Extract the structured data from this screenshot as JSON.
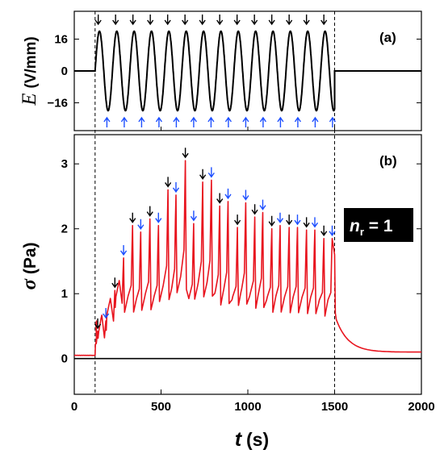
{
  "chart_data": [
    {
      "panel": "(a)",
      "type": "line",
      "ylabel": "E (V/mm)",
      "ylabel_symbol": "E",
      "ylabel_unit": "(V/mm)",
      "y_ticks": [
        16,
        0,
        -16
      ],
      "y_tick_labels": [
        "16",
        "0",
        "−16"
      ],
      "ylim": [
        -30,
        30
      ],
      "xlim": [
        0,
        2000
      ],
      "series": [
        {
          "color": "#000000",
          "description_values": {
            "off_before": [
              0,
              120
            ],
            "ac_on": [
              120,
              1500
            ],
            "amplitude": 20,
            "period": 100,
            "off_after": [
              1500,
              2000
            ]
          }
        }
      ],
      "peak_marker_times_black": [
        138,
        238,
        338,
        438,
        538,
        638,
        738,
        838,
        938,
        1038,
        1138,
        1238,
        1338,
        1438
      ],
      "trough_marker_times_blue": [
        188,
        288,
        388,
        488,
        588,
        688,
        788,
        888,
        988,
        1088,
        1188,
        1288,
        1388,
        1488
      ],
      "colors": {
        "black_arrow": "#000000",
        "blue_arrow": "#1d4fff"
      }
    },
    {
      "panel": "(b)",
      "type": "line",
      "ylabel": "σ (Pa)",
      "ylabel_symbol": "σ",
      "ylabel_unit": "(Pa)",
      "xlabel_symbol": "t",
      "xlabel_unit": "(s)",
      "annotation_n": "n",
      "annotation_sub": "r",
      "annotation_value": " = 1",
      "xlim": [
        0,
        2000
      ],
      "ylim": [
        -0.55,
        3.45
      ],
      "x_ticks": [
        0,
        500,
        1000,
        1500,
        2000
      ],
      "y_ticks": [
        0,
        1,
        2,
        3
      ],
      "vlines": [
        120,
        1500
      ],
      "series": [
        {
          "color": "#e8141e",
          "envelope_peaks": [
            {
              "t": 135,
              "v": 0.42
            },
            {
              "t": 182,
              "v": 0.58
            },
            {
              "t": 234,
              "v": 1.05
            },
            {
              "t": 284,
              "v": 1.55
            },
            {
              "t": 336,
              "v": 2.05
            },
            {
              "t": 383,
              "v": 1.95
            },
            {
              "t": 436,
              "v": 2.15
            },
            {
              "t": 485,
              "v": 2.05
            },
            {
              "t": 540,
              "v": 2.6
            },
            {
              "t": 586,
              "v": 2.52
            },
            {
              "t": 640,
              "v": 3.05
            },
            {
              "t": 688,
              "v": 2.08
            },
            {
              "t": 740,
              "v": 2.72
            },
            {
              "t": 790,
              "v": 2.75
            },
            {
              "t": 838,
              "v": 2.35
            },
            {
              "t": 886,
              "v": 2.42
            },
            {
              "t": 940,
              "v": 2.02
            },
            {
              "t": 988,
              "v": 2.4
            },
            {
              "t": 1040,
              "v": 2.18
            },
            {
              "t": 1086,
              "v": 2.25
            },
            {
              "t": 1138,
              "v": 2.0
            },
            {
              "t": 1186,
              "v": 2.05
            },
            {
              "t": 1238,
              "v": 2.02
            },
            {
              "t": 1286,
              "v": 2.02
            },
            {
              "t": 1338,
              "v": 1.98
            },
            {
              "t": 1386,
              "v": 1.98
            },
            {
              "t": 1438,
              "v": 1.85
            },
            {
              "t": 1486,
              "v": 1.85
            }
          ],
          "baseline_start": 0.05,
          "decay_end": 0.1
        },
        {
          "color": "#000000",
          "constant_value": 0.0
        }
      ],
      "peak_marker_times_black": [
        135,
        234,
        336,
        436,
        540,
        640,
        740,
        838,
        940,
        1040,
        1138,
        1238,
        1338,
        1438
      ],
      "trough_marker_times_blue": [
        182,
        284,
        383,
        485,
        586,
        688,
        790,
        886,
        988,
        1086,
        1186,
        1286,
        1386,
        1486
      ]
    }
  ]
}
